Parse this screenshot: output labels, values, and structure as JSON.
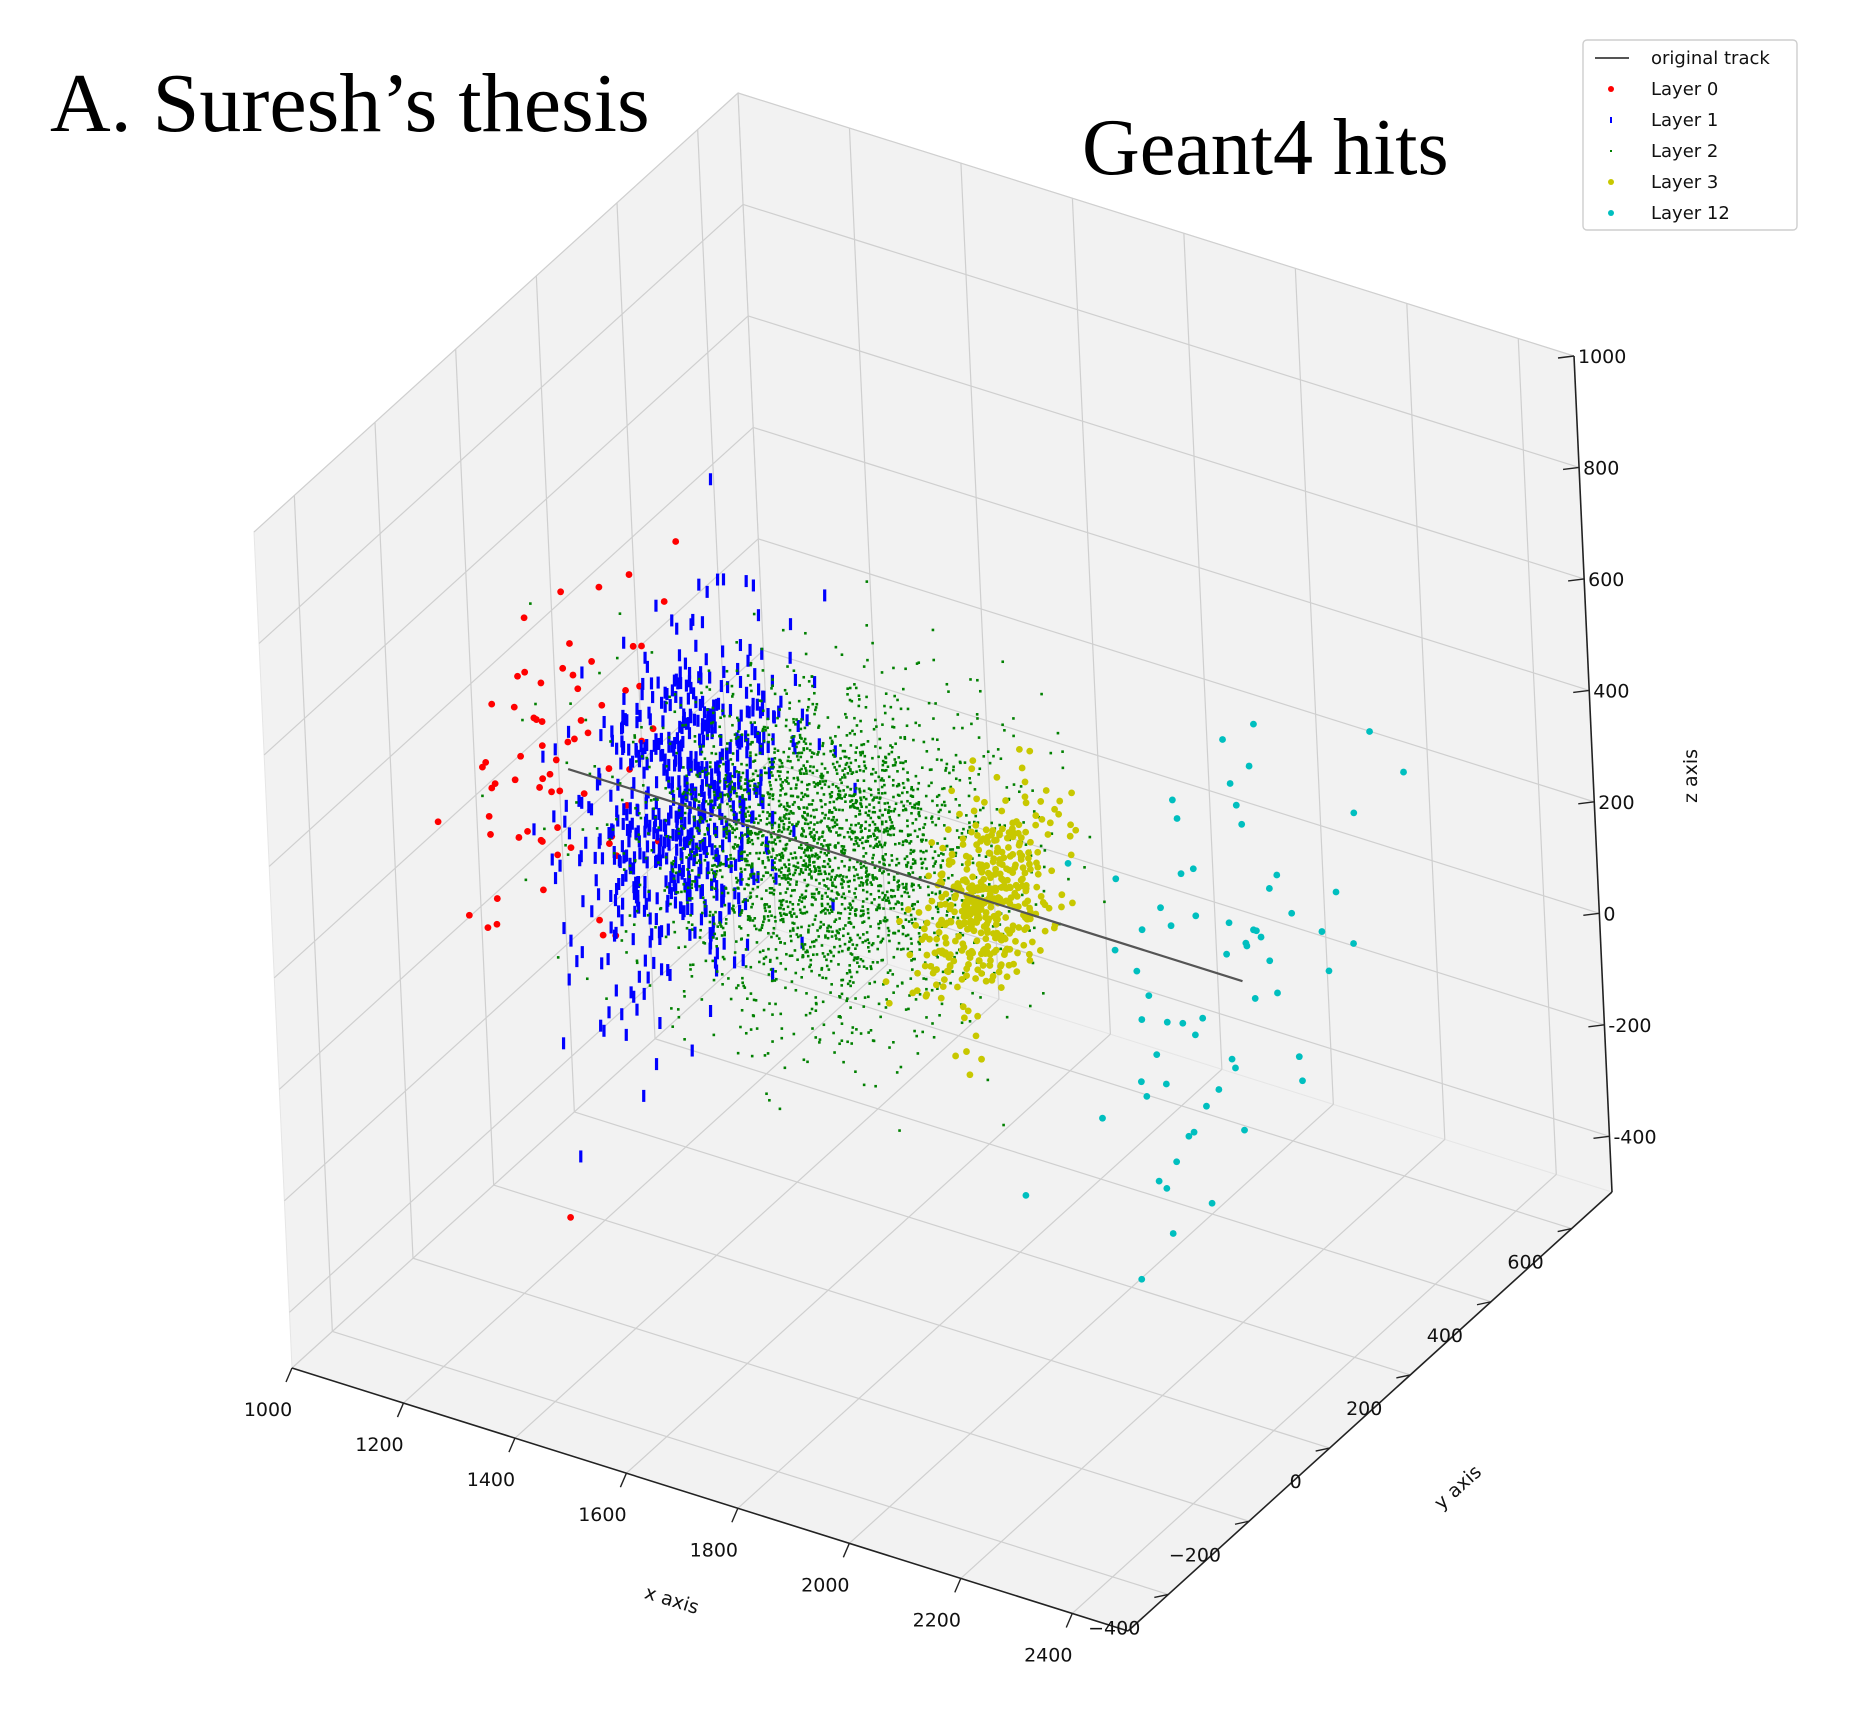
{
  "figure": {
    "title": "A. Suresh’s thesis",
    "subtitle": "Geant4 hits"
  },
  "chart_data": {
    "type": "scatter3d",
    "axes": {
      "x": {
        "label": "x axis",
        "range": [
          1000,
          2500
        ],
        "ticks": [
          1000,
          1200,
          1400,
          1600,
          1800,
          2000,
          2200,
          2400
        ],
        "tick_labels": [
          "1000",
          "1200",
          "1400",
          "1600",
          "1800",
          "2000",
          "2200",
          "2400"
        ]
      },
      "y": {
        "label": "y axis",
        "range": [
          -500,
          700
        ],
        "ticks": [
          -400,
          -200,
          0,
          200,
          400,
          600
        ],
        "tick_labels": [
          "−400",
          "−200",
          "0",
          "200",
          "400",
          "600"
        ]
      },
      "z": {
        "label": "z axis",
        "range": [
          -500,
          1000
        ],
        "ticks": [
          -400,
          -200,
          0,
          200,
          400,
          600,
          800,
          1000
        ],
        "tick_labels": [
          "-400",
          "-200",
          "0",
          "200",
          "400",
          "600",
          "800",
          "1000"
        ]
      }
    },
    "grid": true,
    "legend_position": "top-right",
    "series": [
      {
        "name": "original track",
        "kind": "line",
        "color": "#555555",
        "points": [
          [
            1170,
            0,
            300
          ],
          [
            2380,
            0,
            300
          ]
        ]
      },
      {
        "name": "Layer 0",
        "kind": "scatter",
        "color": "#ff0000",
        "marker": "dot",
        "center": [
          1170,
          0,
          300
        ],
        "spread": [
          40,
          150,
          190
        ],
        "count": 70
      },
      {
        "name": "Layer 1",
        "kind": "scatter",
        "color": "#0000ff",
        "marker": "vbar",
        "center": [
          1380,
          0,
          300
        ],
        "spread": [
          55,
          110,
          130
        ],
        "count": 650
      },
      {
        "name": "Layer 2",
        "kind": "scatter",
        "color": "#008000",
        "marker": "tiny",
        "center": [
          1630,
          0,
          300
        ],
        "spread": [
          140,
          100,
          115
        ],
        "count": 2600
      },
      {
        "name": "Layer 3",
        "kind": "scatter",
        "color": "#c8c800",
        "marker": "dot",
        "center": [
          1920,
          0,
          300
        ],
        "spread": [
          30,
          70,
          80
        ],
        "count": 420
      },
      {
        "name": "Layer 12",
        "kind": "scatter",
        "color": "#00bfbf",
        "marker": "dot",
        "center": [
          2360,
          0,
          300
        ],
        "spread": [
          60,
          180,
          230
        ],
        "count": 65
      }
    ]
  }
}
